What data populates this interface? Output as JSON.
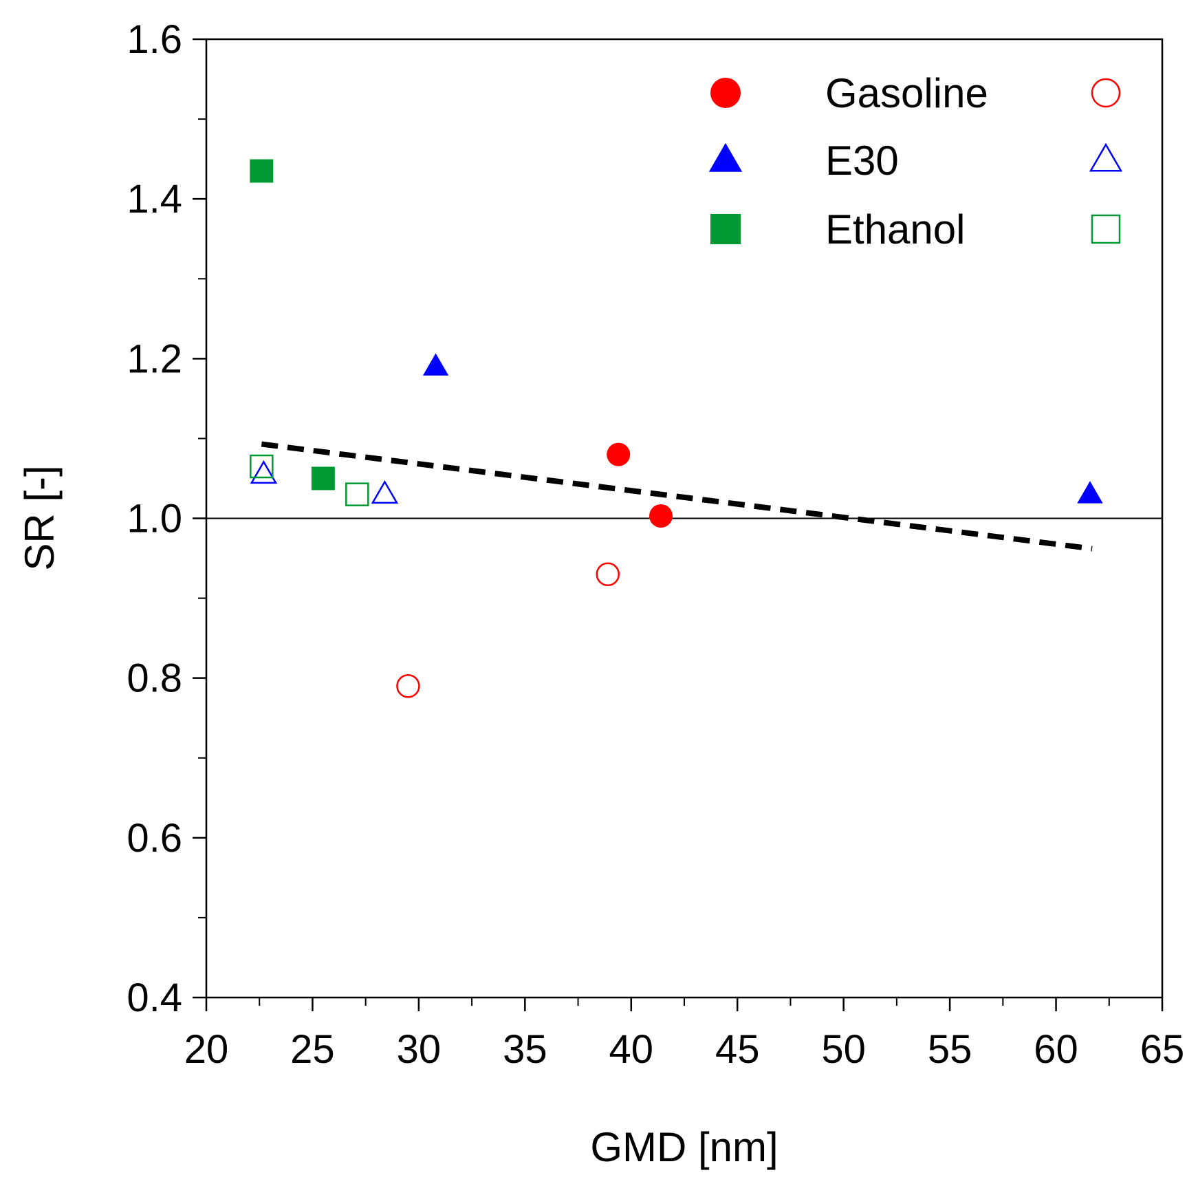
{
  "chart_data": {
    "type": "scatter",
    "title": "",
    "xlabel": "GMD [nm]",
    "ylabel": "SR [-]",
    "xlim": [
      20,
      65
    ],
    "ylim": [
      0.4,
      1.6
    ],
    "xticks": [
      20,
      25,
      30,
      35,
      40,
      45,
      50,
      55,
      60,
      65
    ],
    "xtick_labels": [
      "20",
      "25",
      "30",
      "35",
      "40",
      "45",
      "50",
      "55",
      "60",
      "65"
    ],
    "yticks": [
      0.4,
      0.6,
      0.8,
      1.0,
      1.2,
      1.4,
      1.6
    ],
    "ytick_labels": [
      "0.4",
      "0.6",
      "0.8",
      "1.0",
      "1.2",
      "1.4",
      "1.6"
    ],
    "reference_line_y": 1.0,
    "legend_position": "top-right",
    "legend_labels": [
      "Gasoline",
      "E30",
      "Ethanol"
    ],
    "series": [
      {
        "name": "Gasoline",
        "marker": "circle",
        "filled": true,
        "color": "#ff0000",
        "points": [
          {
            "x": 39.4,
            "y": 1.08
          },
          {
            "x": 41.4,
            "y": 1.003
          }
        ]
      },
      {
        "name": "Gasoline",
        "marker": "circle",
        "filled": false,
        "color": "#ff0000",
        "points": [
          {
            "x": 29.5,
            "y": 0.79
          },
          {
            "x": 38.9,
            "y": 0.93
          }
        ]
      },
      {
        "name": "E30",
        "marker": "triangle",
        "filled": true,
        "color": "#0000ff",
        "points": [
          {
            "x": 30.8,
            "y": 1.19
          },
          {
            "x": 61.6,
            "y": 1.03
          }
        ]
      },
      {
        "name": "E30",
        "marker": "triangle",
        "filled": false,
        "color": "#0000ff",
        "points": [
          {
            "x": 22.7,
            "y": 1.055
          },
          {
            "x": 28.4,
            "y": 1.03
          }
        ]
      },
      {
        "name": "Ethanol",
        "marker": "square",
        "filled": true,
        "color": "#009933",
        "points": [
          {
            "x": 22.6,
            "y": 1.435
          },
          {
            "x": 25.5,
            "y": 1.05
          }
        ]
      },
      {
        "name": "Ethanol",
        "marker": "square",
        "filled": false,
        "color": "#009933",
        "points": [
          {
            "x": 22.6,
            "y": 1.065
          },
          {
            "x": 27.1,
            "y": 1.03
          }
        ]
      }
    ],
    "trendline": {
      "style": "dashed",
      "color": "#000000",
      "x": [
        22.6,
        61.7
      ],
      "y": [
        1.093,
        0.962
      ]
    }
  }
}
